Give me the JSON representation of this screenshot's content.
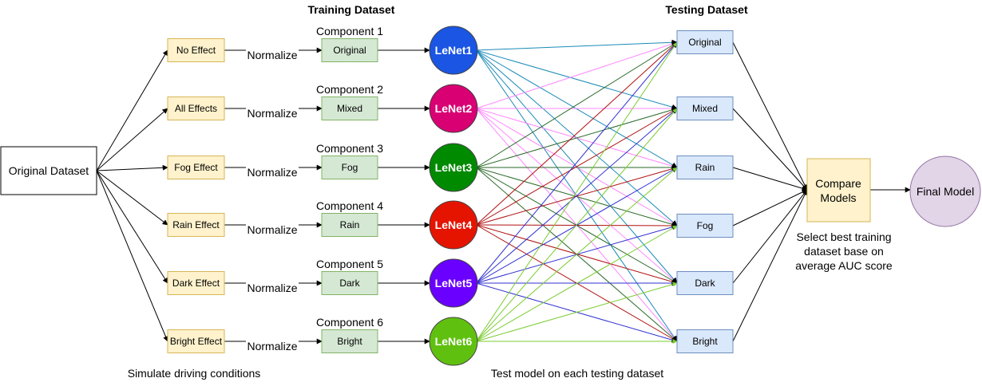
{
  "headers": {
    "training": "Training Dataset",
    "testing": "Testing Dataset"
  },
  "original_dataset": "Original Dataset",
  "effects": [
    "No Effect",
    "All Effects",
    "Fog Effect",
    "Rain Effect",
    "Dark Effect",
    "Bright Effect"
  ],
  "normalize_label": "Normalize",
  "components": [
    "Component 1",
    "Component 2",
    "Component 3",
    "Component 4",
    "Component 5",
    "Component 6"
  ],
  "training_sets": [
    "Original",
    "Mixed",
    "Fog",
    "Rain",
    "Dark",
    "Bright"
  ],
  "models": [
    {
      "label": "LeNet1",
      "color": "#1a55e3"
    },
    {
      "label": "LeNet2",
      "color": "#d80073"
    },
    {
      "label": "LeNet3",
      "color": "#008a00"
    },
    {
      "label": "LeNet4",
      "color": "#e51400"
    },
    {
      "label": "LeNet5",
      "color": "#6a00ff"
    },
    {
      "label": "LeNet6",
      "color": "#60c010"
    }
  ],
  "edge_colors": [
    "#1b8ab8",
    "#ff88ff",
    "#2a6a2a",
    "#b01010",
    "#3030d0",
    "#7acc30"
  ],
  "testing_sets": [
    "Original",
    "Mixed",
    "Rain",
    "Fog",
    "Dark",
    "Bright"
  ],
  "compare": [
    "Compare",
    "Models"
  ],
  "final_model": "Final Model",
  "captions": {
    "simulate": "Simulate driving conditions",
    "test": "Test model on each testing dataset",
    "select": [
      "Select best training",
      "dataset base on",
      "average AUC score"
    ]
  },
  "colors": {
    "effect_fill": "#fff2cc",
    "effect_stroke": "#d6b656",
    "train_fill": "#d5e8d4",
    "train_stroke": "#82b366",
    "test_fill": "#dae8fc",
    "test_stroke": "#6c8ebf",
    "final_fill": "#e1d5e7",
    "final_stroke": "#9673a6"
  }
}
